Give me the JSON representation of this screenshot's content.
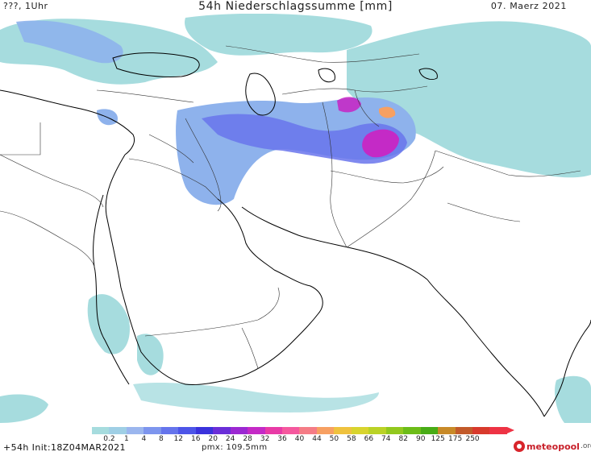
{
  "header": {
    "left": "???, 1Uhr",
    "title": "54h Niederschlagssumme [mm]",
    "date": "07. Maerz 2021"
  },
  "footer": {
    "init": "+54h Init:18Z04MAR2021",
    "pmx": "pmx: 109.5mm",
    "logo_main": "meteopool",
    "logo_suffix": ".org"
  },
  "legend": {
    "labels": [
      "0.2",
      "1",
      "4",
      "8",
      "12",
      "16",
      "20",
      "24",
      "28",
      "32",
      "36",
      "40",
      "44",
      "50",
      "58",
      "66",
      "74",
      "82",
      "90",
      "125",
      "175",
      "250"
    ],
    "colors": [
      "#a6dcde",
      "#9fcfe5",
      "#9bb6ee",
      "#7d95ee",
      "#6574ec",
      "#4d55e8",
      "#3a32dc",
      "#6a2ed8",
      "#9b28d2",
      "#c42ac6",
      "#e83aa6",
      "#f5589e",
      "#f57c86",
      "#f7a062",
      "#efc23e",
      "#d8d42e",
      "#bad226",
      "#92c81e",
      "#6cbc18",
      "#48ac16",
      "#c88a28",
      "#c25a2a",
      "#d83a2c",
      "#ee3344"
    ],
    "tip_color": "#ee3344"
  },
  "colors": {
    "precip_light": "#a6dcde",
    "precip_mid": "#8eb2ec",
    "precip_blue": "#6874ec",
    "precip_purple": "#c42ac6",
    "precip_peak": "#f7a062",
    "coastline": "#000000",
    "borders": "#333333"
  },
  "icons": {
    "logo": "meteopool-logo-icon"
  }
}
